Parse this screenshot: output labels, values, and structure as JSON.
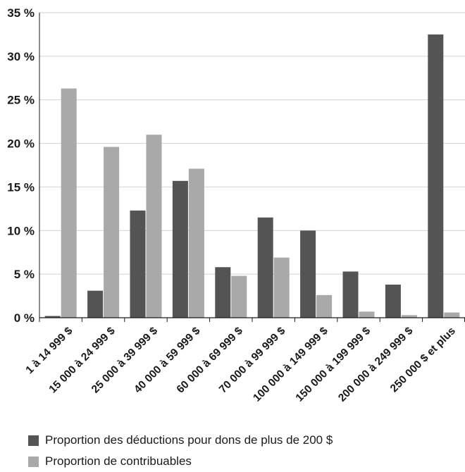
{
  "chart_data": {
    "type": "bar",
    "categories": [
      "1 à 14 999 $",
      "15 000 à 24 999 $",
      "25 000 à 39 999 $",
      "40 000 à 59 999 $",
      "60 000 à 69 999 $",
      "70 000 à 99 999 $",
      "100 000 à 149 999 $",
      "150 000 à 199 999 $",
      "200 000 à 249 999 $",
      "250 000 $ et plus"
    ],
    "series": [
      {
        "name": "Proportion des déductions pour dons de plus de 200 $",
        "color": "#545454",
        "values": [
          0.2,
          3.1,
          12.3,
          15.7,
          5.8,
          11.5,
          10.0,
          5.3,
          3.8,
          32.5
        ]
      },
      {
        "name": "Proportion de contribuables",
        "color": "#a9a9a9",
        "values": [
          26.3,
          19.6,
          21.0,
          17.1,
          4.8,
          6.9,
          2.6,
          0.7,
          0.3,
          0.6
        ]
      }
    ],
    "yticks": [
      "0 %",
      "5 %",
      "10 %",
      "15 %",
      "20 %",
      "25 %",
      "30 %",
      "35 %"
    ],
    "ylim": [
      0,
      35
    ],
    "grid": true,
    "legend_position": "bottom-left",
    "title": "",
    "xlabel": "",
    "ylabel": ""
  }
}
